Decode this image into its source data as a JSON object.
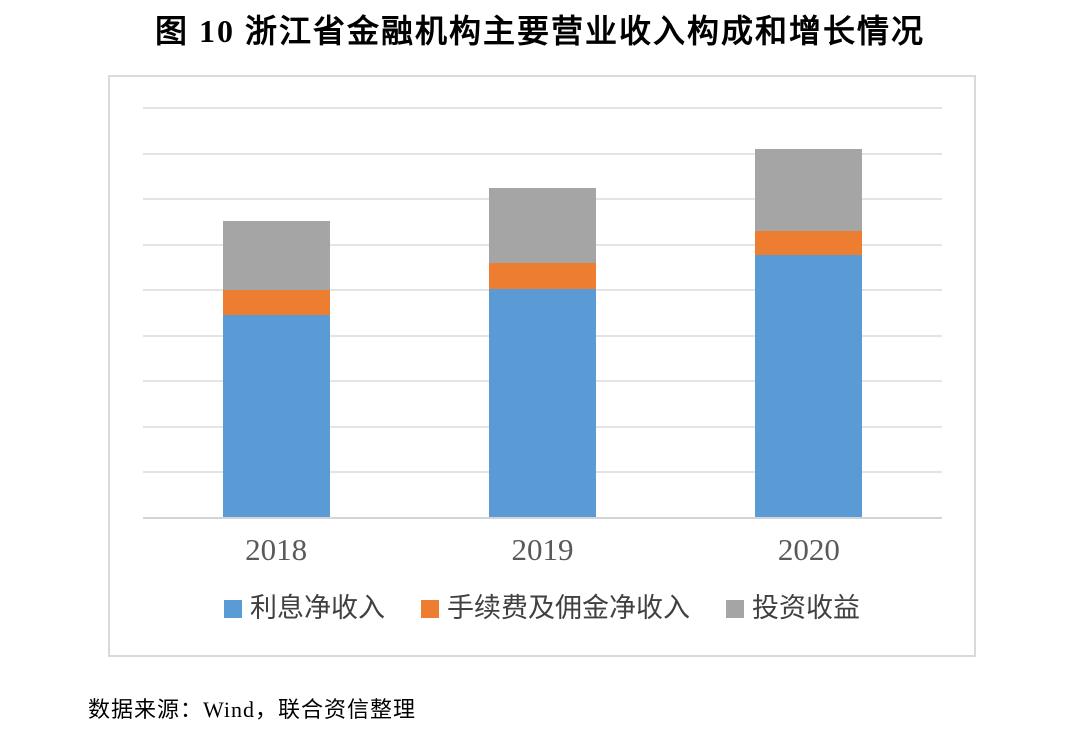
{
  "title": "图 10 浙江省金融机构主要营业收入构成和增长情况",
  "source_note": "数据来源：Wind，联合资信整理",
  "chart_data": {
    "type": "bar",
    "stacked": true,
    "title": "图 10 浙江省金融机构主要营业收入构成和增长情况",
    "categories": [
      "2018",
      "2019",
      "2020"
    ],
    "series": [
      {
        "name": "利息净收入",
        "key": "net-interest-income",
        "color": "#5B9BD5",
        "values": [
          4.45,
          5.02,
          5.78
        ]
      },
      {
        "name": "手续费及佣金净收入",
        "key": "fee-and-commission-income",
        "color": "#ED7D31",
        "values": [
          0.55,
          0.57,
          0.51
        ]
      },
      {
        "name": "投资收益",
        "key": "investment-income",
        "color": "#A5A5A5",
        "values": [
          1.51,
          1.65,
          1.82
        ]
      }
    ],
    "xlabel": "",
    "ylabel": "",
    "ylim": [
      0,
      9
    ],
    "gridline_interval": 1,
    "y_tick_labels_visible": false,
    "grid": true,
    "legend_position": "bottom",
    "value_note": "y-axis has no visible tick labels; values are in gridline units (1 unit = 1 gridline interval)"
  },
  "colors": {
    "series_blue": "#5B9BD5",
    "series_orange": "#ED7D31",
    "series_gray": "#A5A5A5",
    "gridline": "#E4E4E4",
    "chart_border": "#D9D9D9",
    "axis_line": "#D4D4D4",
    "x_tick_label": "#595959",
    "legend_text": "#404040"
  }
}
